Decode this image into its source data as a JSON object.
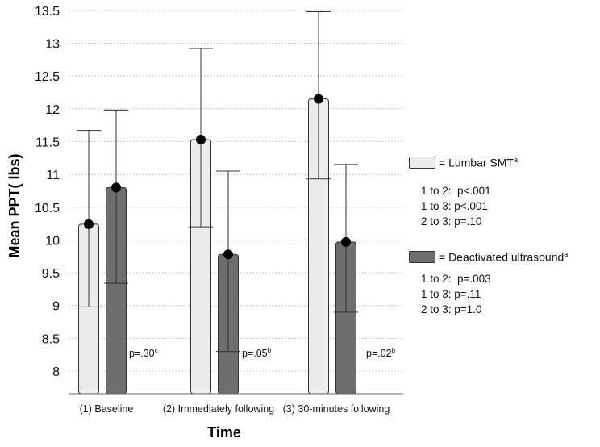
{
  "chart_data": {
    "type": "bar",
    "title": "",
    "xlabel": "Time",
    "ylabel": "Mean PPT( lbs)",
    "ylim": [
      7.65,
      13.5
    ],
    "yticks": [
      8,
      8.5,
      9,
      9.5,
      10,
      10.5,
      11,
      11.5,
      12,
      12.5,
      13,
      13.5
    ],
    "grid": true,
    "categories": [
      "(1) Baseline",
      "(2) Immediately following",
      "(3) 30-minutes following"
    ],
    "series": [
      {
        "name": "Lumbar SMT",
        "superscript": "a",
        "color": "#ececec",
        "values": [
          10.24,
          11.53,
          12.15
        ],
        "error_low": [
          8.98,
          10.2,
          10.93
        ],
        "error_high": [
          11.67,
          12.92,
          13.48
        ]
      },
      {
        "name": "Deactivated ultrasound",
        "superscript": "a",
        "color": "#6e6e6e",
        "values": [
          10.8,
          9.78,
          9.97
        ],
        "error_low": [
          9.34,
          8.3,
          8.9
        ],
        "error_high": [
          11.98,
          11.05,
          11.15
        ]
      }
    ],
    "annotations": [
      {
        "category": "(1) Baseline",
        "text": "p=.30",
        "sup": "c"
      },
      {
        "category": "(2) Immediately following",
        "text": "p=.05",
        "sup": "b"
      },
      {
        "category": "(3) 30-minutes following",
        "text": "p=.02",
        "sup": "b"
      }
    ]
  },
  "legend": {
    "smt": {
      "label": "= Lumbar SMT",
      "sup": "a",
      "comparisons": [
        "1 to 2:  p<.001",
        "1 to 3: p<.001",
        "2 to 3: p=.10"
      ]
    },
    "ultrasound": {
      "label": "= Deactivated ultrasound",
      "sup": "a",
      "comparisons": [
        "1 to 2:  p=.003",
        "1 to 3: p=.11",
        "2 to 3: p=1.0"
      ]
    }
  }
}
